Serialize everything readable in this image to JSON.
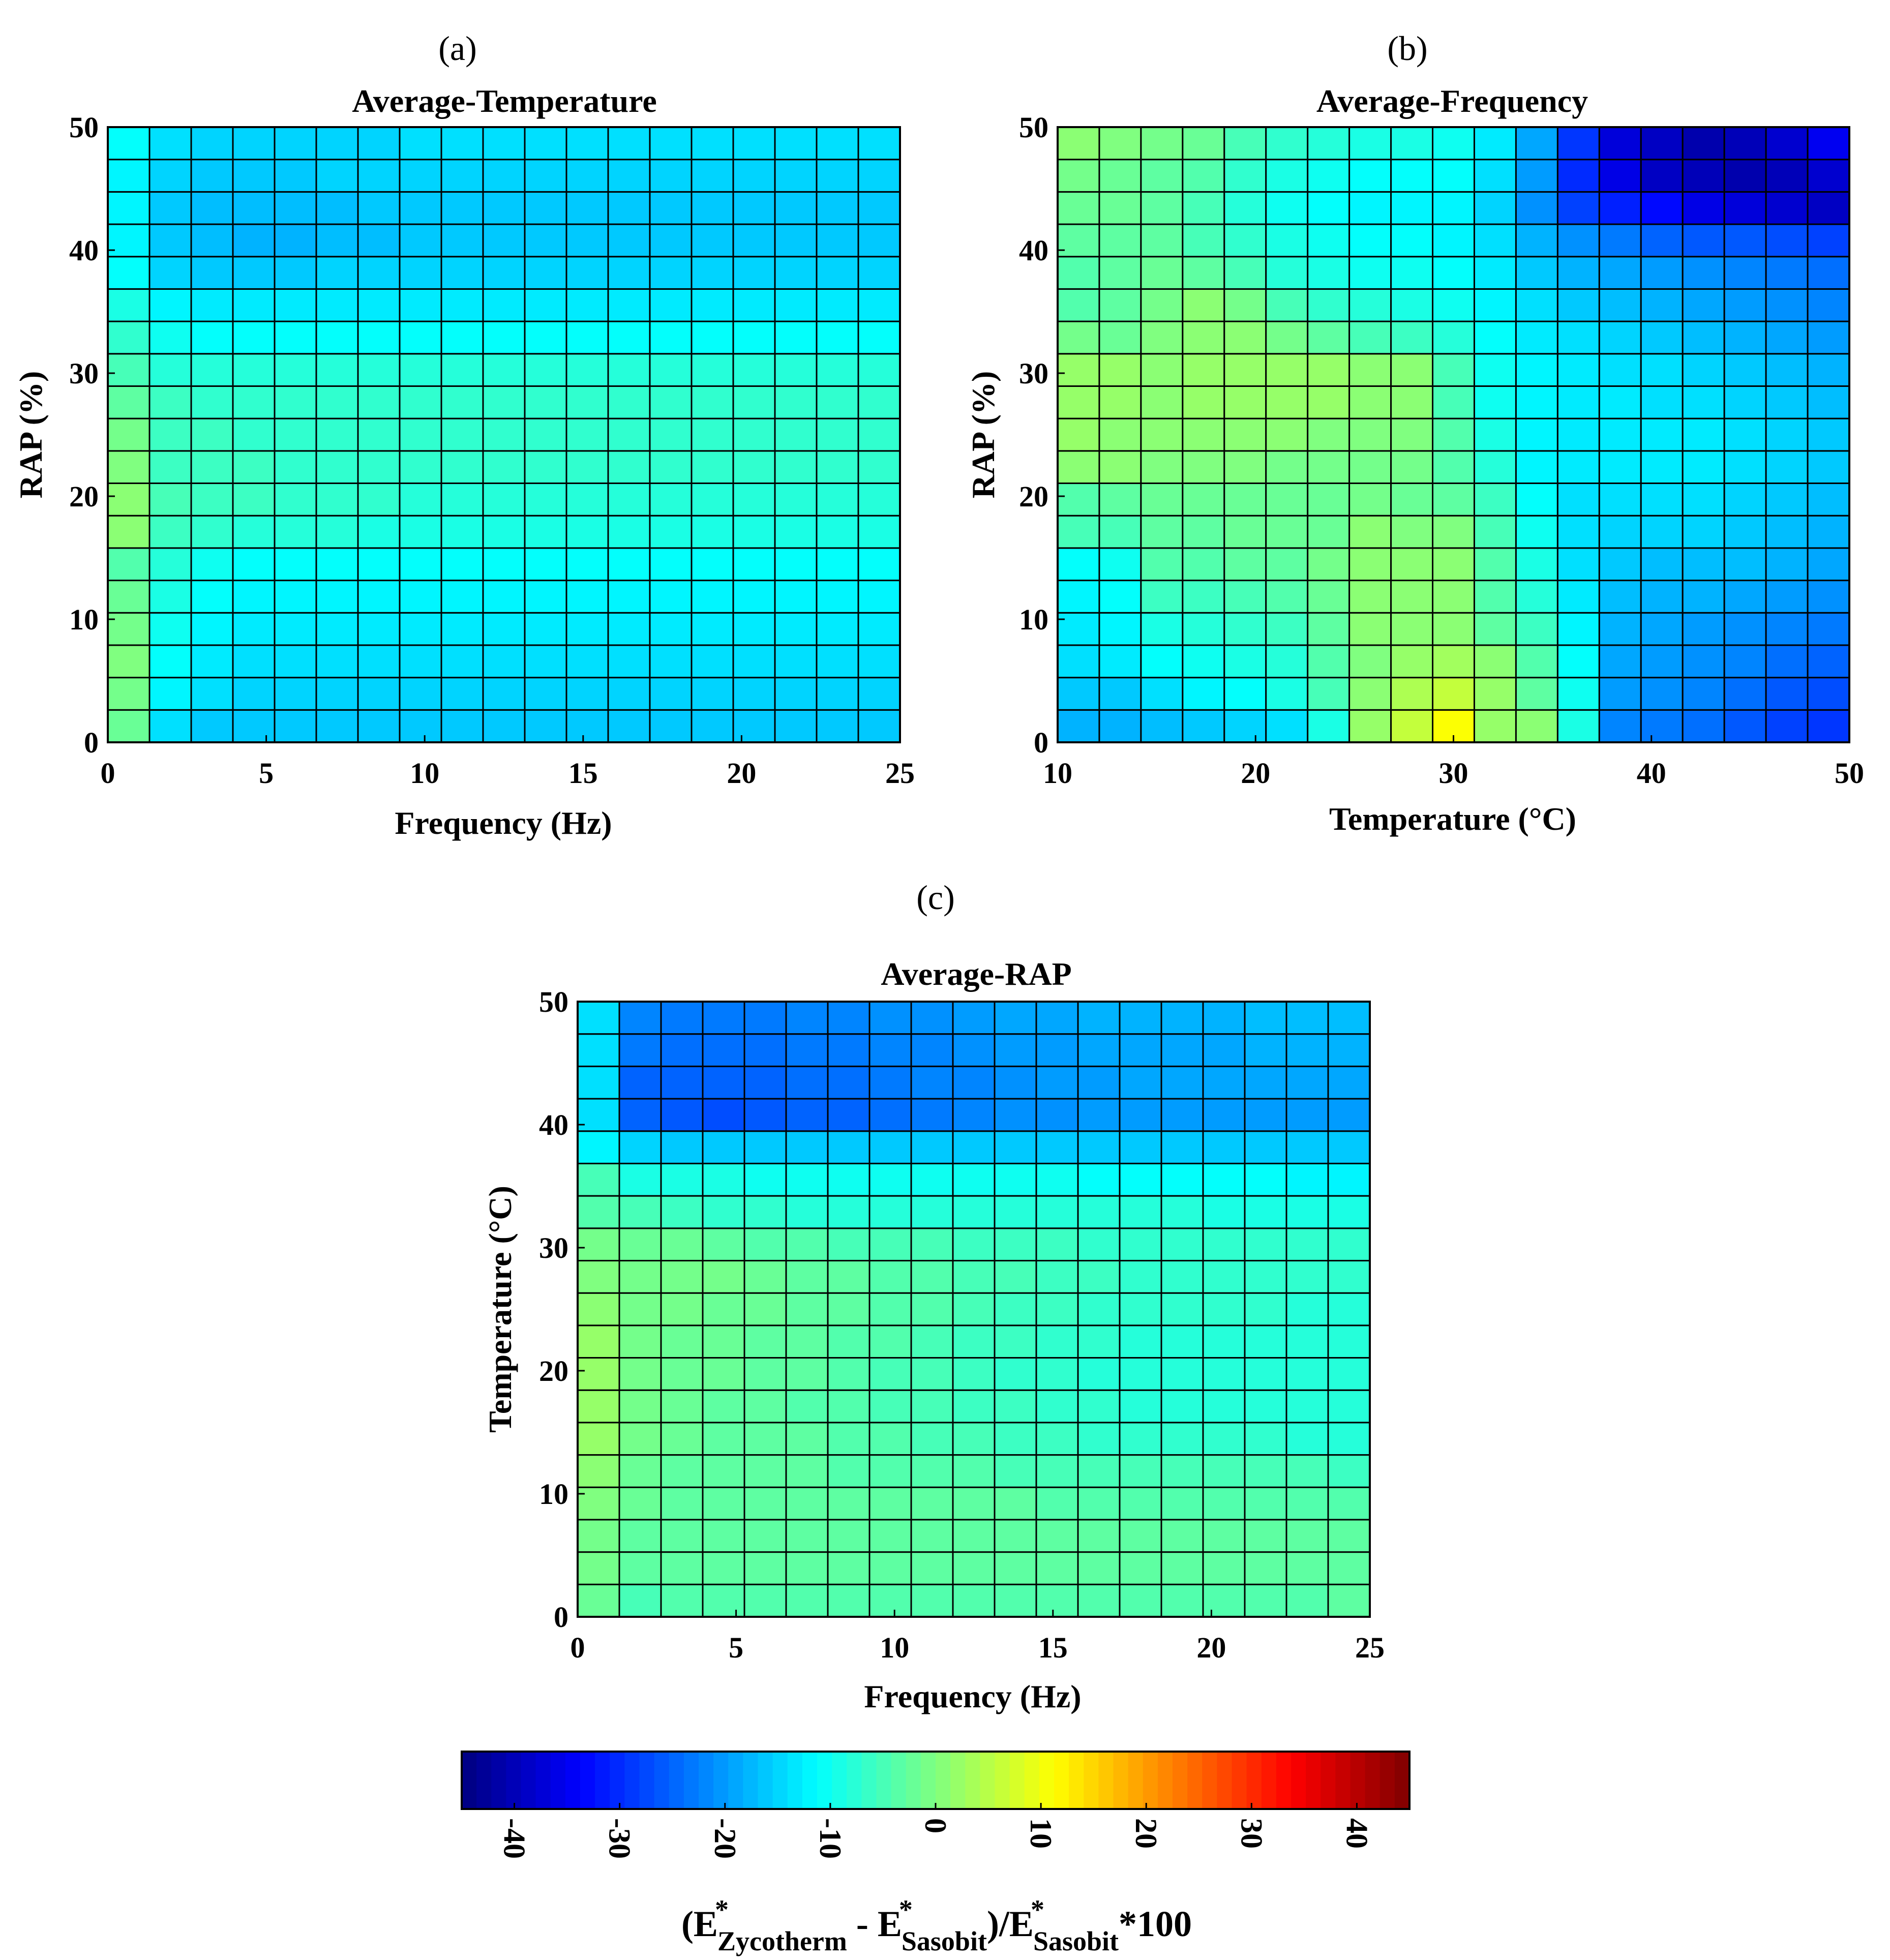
{
  "figure": {
    "colorbar": {
      "range": [
        -45,
        45
      ],
      "ticks": [
        "-40",
        "-30",
        "-20",
        "-10",
        "0",
        "10",
        "20",
        "30",
        "40"
      ],
      "label_parts": {
        "open": "(E",
        "star": "*",
        "sub_zycotherm": "Zycotherm",
        "minus": " - E",
        "sub_sasobit": "Sasobit",
        "close_div": ")/E",
        "times": "*100"
      },
      "colormap": "jet"
    }
  },
  "chart_data": [
    {
      "type": "heatmap",
      "panel_tag": "(a)",
      "title": "Average-Temperature",
      "xlabel": "Frequency (Hz)",
      "ylabel": "RAP (%)",
      "xlim": [
        0,
        25
      ],
      "ylim": [
        0,
        50
      ],
      "xticks": [
        "0",
        "5",
        "10",
        "15",
        "20",
        "25"
      ],
      "yticks": [
        "0",
        "10",
        "20",
        "30",
        "40",
        "50"
      ],
      "grid_rows": 19,
      "grid_cols": 19,
      "value_range": [
        -45,
        45
      ],
      "pattern": "rows bottom to top, columns left to right",
      "values": [
        [
          -2,
          -14,
          -16,
          -16,
          -16,
          -16,
          -16,
          -16,
          -16,
          -16,
          -16,
          -16,
          -16,
          -16,
          -16,
          -16,
          -16,
          -16,
          -16
        ],
        [
          -1,
          -12,
          -14,
          -15,
          -15,
          -15,
          -15,
          -15,
          -15,
          -15,
          -15,
          -15,
          -15,
          -15,
          -15,
          -15,
          -15,
          -15,
          -15
        ],
        [
          0,
          -11,
          -13,
          -14,
          -14,
          -14,
          -14,
          -14,
          -14,
          -14,
          -14,
          -14,
          -14,
          -14,
          -14,
          -14,
          -14,
          -14,
          -14
        ],
        [
          -1,
          -10,
          -12,
          -13,
          -13,
          -13,
          -13,
          -13,
          -13,
          -13,
          -13,
          -13,
          -13,
          -13,
          -13,
          -13,
          -13,
          -13,
          -13
        ],
        [
          -2,
          -9,
          -11,
          -12,
          -12,
          -12,
          -12,
          -12,
          -12,
          -12,
          -12,
          -12,
          -12,
          -12,
          -12,
          -12,
          -12,
          -12,
          -12
        ],
        [
          -4,
          -8,
          -10,
          -11,
          -11,
          -11,
          -11,
          -11,
          -11,
          -11,
          -11,
          -11,
          -11,
          -11,
          -11,
          -11,
          -11,
          -11,
          -11
        ],
        [
          1,
          -6,
          -7,
          -8,
          -8,
          -8,
          -9,
          -9,
          -9,
          -9,
          -9,
          -9,
          -9,
          -9,
          -9,
          -9,
          -9,
          -9,
          -9
        ],
        [
          1,
          -5,
          -6,
          -6,
          -7,
          -7,
          -7,
          -8,
          -8,
          -8,
          -8,
          -8,
          -8,
          -8,
          -8,
          -8,
          -8,
          -8,
          -8
        ],
        [
          0,
          -6,
          -6,
          -6,
          -7,
          -7,
          -7,
          -7,
          -7,
          -7,
          -7,
          -7,
          -7,
          -7,
          -7,
          -7,
          -7,
          -7,
          -7
        ],
        [
          -1,
          -6,
          -6,
          -7,
          -7,
          -7,
          -7,
          -7,
          -7,
          -7,
          -7,
          -7,
          -7,
          -7,
          -7,
          -7,
          -7,
          -7,
          -7
        ],
        [
          -3,
          -6,
          -7,
          -7,
          -7,
          -7,
          -7,
          -7,
          -7,
          -7,
          -7,
          -7,
          -7,
          -7,
          -7,
          -7,
          -7,
          -7,
          -7
        ],
        [
          -5,
          -8,
          -8,
          -8,
          -8,
          -8,
          -8,
          -8,
          -8,
          -8,
          -8,
          -8,
          -8,
          -8,
          -8,
          -8,
          -8,
          -8,
          -8
        ],
        [
          -7,
          -10,
          -11,
          -11,
          -11,
          -11,
          -11,
          -11,
          -11,
          -11,
          -11,
          -11,
          -11,
          -11,
          -11,
          -11,
          -11,
          -11,
          -11
        ],
        [
          -9,
          -12,
          -13,
          -13,
          -13,
          -13,
          -13,
          -13,
          -13,
          -13,
          -13,
          -13,
          -13,
          -13,
          -13,
          -13,
          -13,
          -13,
          -13
        ],
        [
          -11,
          -15,
          -16,
          -16,
          -16,
          -15,
          -15,
          -15,
          -15,
          -15,
          -15,
          -15,
          -15,
          -15,
          -15,
          -15,
          -15,
          -15,
          -15
        ],
        [
          -12,
          -16,
          -17,
          -18,
          -18,
          -17,
          -17,
          -16,
          -16,
          -16,
          -16,
          -16,
          -16,
          -16,
          -16,
          -16,
          -16,
          -16,
          -16
        ],
        [
          -12,
          -16,
          -17,
          -17,
          -17,
          -17,
          -16,
          -16,
          -16,
          -16,
          -16,
          -16,
          -16,
          -16,
          -16,
          -16,
          -16,
          -16,
          -16
        ],
        [
          -12,
          -15,
          -16,
          -16,
          -16,
          -15,
          -15,
          -15,
          -15,
          -15,
          -15,
          -15,
          -15,
          -15,
          -15,
          -15,
          -15,
          -15,
          -15
        ],
        [
          -11,
          -14,
          -15,
          -15,
          -15,
          -15,
          -15,
          -14,
          -14,
          -14,
          -14,
          -14,
          -14,
          -14,
          -14,
          -14,
          -14,
          -14,
          -14
        ]
      ]
    },
    {
      "type": "heatmap",
      "panel_tag": "(b)",
      "title": "Average-Frequency",
      "xlabel": "Temperature (°C)",
      "ylabel": "RAP (%)",
      "xlim": [
        10,
        50
      ],
      "ylim": [
        0,
        50
      ],
      "xticks": [
        "10",
        "20",
        "30",
        "40",
        "50"
      ],
      "yticks": [
        "0",
        "10",
        "20",
        "30",
        "40",
        "50"
      ],
      "grid_rows": 19,
      "grid_cols": 19,
      "value_range": [
        -45,
        45
      ],
      "pattern": "rows bottom to top, columns left to right",
      "values": [
        [
          -18,
          -18,
          -17,
          -16,
          -15,
          -14,
          -9,
          2,
          6,
          11,
          2,
          1,
          -9,
          -22,
          -23,
          -24,
          -26,
          -28,
          -29
        ],
        [
          -16,
          -16,
          -14,
          -12,
          -11,
          -9,
          -5,
          1,
          4,
          6,
          2,
          -3,
          -10,
          -20,
          -21,
          -22,
          -24,
          -26,
          -27
        ],
        [
          -14,
          -13,
          -11,
          -10,
          -9,
          -8,
          -4,
          0,
          2,
          3,
          1,
          -4,
          -11,
          -19,
          -20,
          -21,
          -22,
          -24,
          -25
        ],
        [
          -13,
          -12,
          -9,
          -8,
          -7,
          -6,
          -3,
          1,
          1,
          1,
          -3,
          -6,
          -12,
          -18,
          -19,
          -20,
          -21,
          -22,
          -23
        ],
        [
          -12,
          -11,
          -6,
          -6,
          -5,
          -4,
          -2,
          1,
          1,
          1,
          -4,
          -8,
          -13,
          -17,
          -18,
          -18,
          -19,
          -20,
          -21
        ],
        [
          -11,
          -10,
          -4,
          -4,
          -3,
          -3,
          -1,
          1,
          1,
          1,
          -4,
          -9,
          -14,
          -16,
          -17,
          -17,
          -17,
          -18,
          -19
        ],
        [
          -5,
          -5,
          -3,
          -3,
          -2,
          -2,
          -2,
          1,
          0,
          0,
          -5,
          -10,
          -14,
          -15,
          -15,
          -15,
          -16,
          -17,
          -18
        ],
        [
          -4,
          -3,
          -2,
          -2,
          -2,
          -2,
          -2,
          -1,
          -2,
          -3,
          -6,
          -11,
          -14,
          -14,
          -14,
          -14,
          -15,
          -16,
          -17
        ],
        [
          1,
          1,
          0,
          0,
          0,
          -1,
          -1,
          -1,
          -1,
          -4,
          -8,
          -12,
          -13,
          -13,
          -13,
          -13,
          -14,
          -15,
          -16
        ],
        [
          2,
          1,
          1,
          1,
          1,
          1,
          0,
          0,
          0,
          -4,
          -9,
          -12,
          -13,
          -13,
          -13,
          -13,
          -14,
          -15,
          -16
        ],
        [
          2,
          2,
          1,
          2,
          2,
          2,
          2,
          1,
          1,
          -5,
          -10,
          -12,
          -13,
          -13,
          -14,
          -14,
          -15,
          -16,
          -17
        ],
        [
          2,
          2,
          1,
          2,
          2,
          2,
          2,
          1,
          1,
          -5,
          -10,
          -12,
          -13,
          -14,
          -14,
          -15,
          -16,
          -17,
          -18
        ],
        [
          -1,
          -2,
          0,
          1,
          1,
          -1,
          -3,
          -5,
          -6,
          -8,
          -11,
          -13,
          -14,
          -15,
          -16,
          -17,
          -18,
          -19,
          -20
        ],
        [
          -4,
          -3,
          -1,
          1,
          -1,
          -5,
          -7,
          -8,
          -9,
          -10,
          -12,
          -14,
          -16,
          -17,
          -18,
          -19,
          -20,
          -21,
          -22
        ],
        [
          -4,
          -3,
          -2,
          -3,
          -5,
          -8,
          -9,
          -10,
          -10,
          -11,
          -13,
          -16,
          -18,
          -19,
          -20,
          -21,
          -22,
          -23,
          -24
        ],
        [
          -3,
          -3,
          -3,
          -5,
          -7,
          -9,
          -10,
          -11,
          -11,
          -12,
          -14,
          -18,
          -21,
          -23,
          -25,
          -26,
          -26,
          -27,
          -28
        ],
        [
          -2,
          -2,
          -3,
          -5,
          -8,
          -10,
          -11,
          -12,
          -12,
          -12,
          -15,
          -21,
          -28,
          -31,
          -33,
          -36,
          -37,
          -38,
          -39
        ],
        [
          -1,
          -2,
          -3,
          -4,
          -7,
          -9,
          -10,
          -11,
          -11,
          -11,
          -14,
          -20,
          -30,
          -36,
          -39,
          -40,
          -41,
          -40,
          -38
        ],
        [
          1,
          0,
          -1,
          -2,
          -5,
          -7,
          -8,
          -9,
          -9,
          -10,
          -13,
          -19,
          -29,
          -37,
          -39,
          -41,
          -40,
          -38,
          -35
        ]
      ]
    },
    {
      "type": "heatmap",
      "panel_tag": "(c)",
      "title": "Average-RAP",
      "xlabel": "Frequency (Hz)",
      "ylabel": "Temperature (°C)",
      "xlim": [
        0,
        25
      ],
      "ylim": [
        0,
        50
      ],
      "xticks": [
        "0",
        "5",
        "10",
        "15",
        "20",
        "25"
      ],
      "yticks": [
        "0",
        "10",
        "20",
        "30",
        "40",
        "50"
      ],
      "grid_rows": 19,
      "grid_cols": 19,
      "value_range": [
        -45,
        45
      ],
      "pattern": "rows bottom to top, columns left to right",
      "values": [
        [
          -2,
          -5,
          -4,
          -4,
          -4,
          -4,
          -4,
          -4,
          -4,
          -4,
          -4,
          -4,
          -4,
          -4,
          -4,
          -4,
          -4,
          -4,
          -3
        ],
        [
          -1,
          -3,
          -3,
          -3,
          -3,
          -3,
          -3,
          -3,
          -3,
          -3,
          -3,
          -3,
          -3,
          -3,
          -3,
          -3,
          -3,
          -3,
          -3
        ],
        [
          -1,
          -3,
          -3,
          -3,
          -3,
          -3,
          -3,
          -3,
          -3,
          -3,
          -3,
          -3,
          -3,
          -3,
          -3,
          -3,
          -3,
          -3,
          -3
        ],
        [
          0,
          -2,
          -3,
          -3,
          -3,
          -3,
          -3,
          -3,
          -3,
          -3,
          -3,
          -4,
          -4,
          -4,
          -4,
          -4,
          -4,
          -4,
          -4
        ],
        [
          1,
          -2,
          -3,
          -3,
          -3,
          -3,
          -4,
          -4,
          -4,
          -4,
          -5,
          -5,
          -5,
          -5,
          -5,
          -5,
          -5,
          -5,
          -6
        ],
        [
          2,
          -1,
          -2,
          -3,
          -3,
          -3,
          -4,
          -4,
          -5,
          -5,
          -6,
          -6,
          -7,
          -7,
          -7,
          -7,
          -7,
          -8,
          -8
        ],
        [
          2,
          -1,
          -2,
          -3,
          -3,
          -4,
          -4,
          -5,
          -5,
          -6,
          -6,
          -7,
          -7,
          -8,
          -8,
          -8,
          -8,
          -8,
          -8
        ],
        [
          2,
          -1,
          -2,
          -2,
          -3,
          -3,
          -4,
          -5,
          -5,
          -6,
          -7,
          -7,
          -8,
          -8,
          -8,
          -8,
          -8,
          -8,
          -8
        ],
        [
          2,
          -1,
          -2,
          -2,
          -3,
          -3,
          -4,
          -4,
          -5,
          -6,
          -6,
          -7,
          -7,
          -8,
          -8,
          -8,
          -8,
          -8,
          -8
        ],
        [
          1,
          -1,
          -1,
          -2,
          -2,
          -3,
          -3,
          -4,
          -4,
          -5,
          -6,
          -6,
          -7,
          -7,
          -7,
          -7,
          -7,
          -8,
          -8
        ],
        [
          0,
          -1,
          -1,
          -1,
          -2,
          -3,
          -3,
          -4,
          -4,
          -5,
          -5,
          -6,
          -6,
          -7,
          -7,
          -7,
          -7,
          -7,
          -7
        ],
        [
          -1,
          -2,
          -2,
          -3,
          -4,
          -4,
          -5,
          -5,
          -5,
          -6,
          -6,
          -6,
          -7,
          -7,
          -7,
          -7,
          -7,
          -7,
          -7
        ],
        [
          -4,
          -5,
          -6,
          -7,
          -7,
          -8,
          -8,
          -8,
          -8,
          -8,
          -8,
          -8,
          -8,
          -8,
          -8,
          -9,
          -9,
          -9,
          -9
        ],
        [
          -5,
          -9,
          -9,
          -9,
          -10,
          -10,
          -10,
          -10,
          -10,
          -10,
          -10,
          -10,
          -11,
          -11,
          -11,
          -11,
          -11,
          -12,
          -12
        ],
        [
          -12,
          -15,
          -16,
          -16,
          -16,
          -16,
          -16,
          -16,
          -16,
          -16,
          -16,
          -16,
          -16,
          -16,
          -16,
          -16,
          -16,
          -16,
          -16
        ],
        [
          -14,
          -25,
          -26,
          -27,
          -26,
          -25,
          -25,
          -24,
          -23,
          -22,
          -21,
          -21,
          -20,
          -20,
          -20,
          -20,
          -20,
          -20,
          -20
        ],
        [
          -14,
          -25,
          -25,
          -25,
          -25,
          -24,
          -24,
          -23,
          -22,
          -22,
          -21,
          -20,
          -20,
          -19,
          -19,
          -19,
          -19,
          -19,
          -19
        ],
        [
          -14,
          -23,
          -24,
          -24,
          -24,
          -23,
          -23,
          -22,
          -22,
          -21,
          -20,
          -20,
          -19,
          -19,
          -19,
          -19,
          -18,
          -18,
          -18
        ],
        [
          -14,
          -22,
          -23,
          -23,
          -23,
          -22,
          -22,
          -21,
          -21,
          -20,
          -19,
          -19,
          -18,
          -18,
          -18,
          -18,
          -17,
          -17,
          -17
        ]
      ]
    }
  ]
}
